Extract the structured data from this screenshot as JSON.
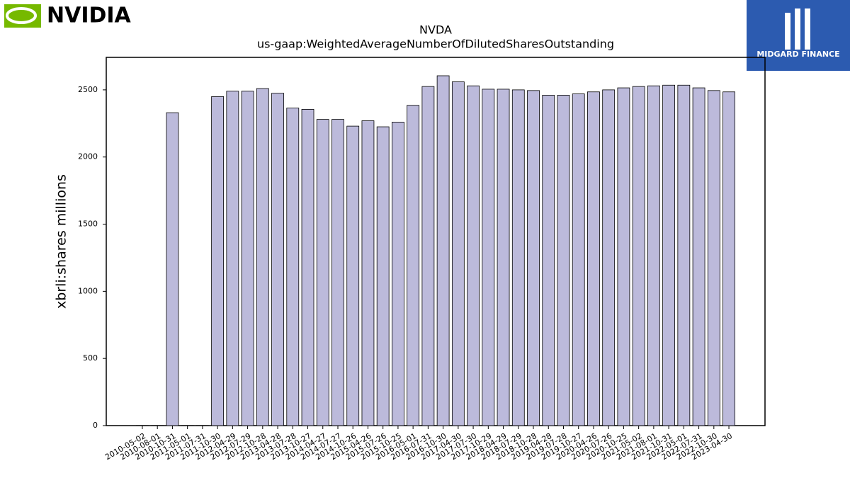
{
  "brand": {
    "left": "NVIDIA",
    "right": "MIDGARD FINANCE"
  },
  "chart_data": {
    "type": "bar",
    "title": "NVDA",
    "subtitle": "us-gaap:WeightedAverageNumberOfDilutedSharesOutstanding",
    "ylabel": "xbrli:shares millions",
    "color": "#bcbadb",
    "categories": [
      "2010-05-02",
      "2010-08-01",
      "2010-10-31",
      "2011-05-01",
      "2011-07-31",
      "2011-10-30",
      "2012-04-29",
      "2012-07-29",
      "2012-10-28",
      "2013-04-28",
      "2013-07-28",
      "2013-10-27",
      "2014-04-27",
      "2014-07-27",
      "2014-10-26",
      "2015-04-26",
      "2015-07-26",
      "2015-10-25",
      "2016-05-01",
      "2016-07-31",
      "2016-10-30",
      "2017-04-30",
      "2017-07-30",
      "2017-10-29",
      "2018-04-29",
      "2018-07-29",
      "2018-10-28",
      "2019-04-28",
      "2019-07-28",
      "2019-10-27",
      "2020-04-26",
      "2020-07-26",
      "2020-10-25",
      "2021-05-02",
      "2021-08-01",
      "2021-10-31",
      "2022-05-01",
      "2022-07-31",
      "2022-10-30",
      "2023-04-30"
    ],
    "values": [
      1,
      1,
      2330,
      1,
      1,
      2450,
      2490,
      2490,
      2510,
      2475,
      2365,
      2355,
      2280,
      2280,
      2230,
      2270,
      2225,
      2260,
      2385,
      2525,
      2605,
      2560,
      2530,
      2505,
      2505,
      2500,
      2495,
      2460,
      2460,
      2470,
      2485,
      2500,
      2515,
      2525,
      2530,
      2535,
      2535,
      2515,
      2495,
      2485
    ],
    "ylim": [
      0,
      2742
    ],
    "yticks": [
      0,
      500,
      1000,
      1500,
      2000,
      2500
    ]
  }
}
